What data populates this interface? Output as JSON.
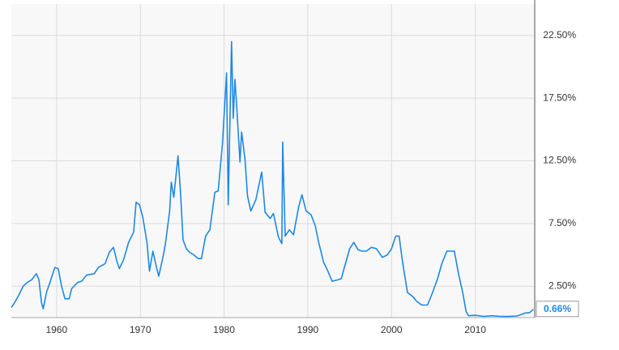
{
  "chart_data": {
    "type": "line",
    "series": [
      {
        "color": "#1e88e5",
        "x": [
          1954.6,
          1955,
          1955.5,
          1956,
          1956.5,
          1957,
          1957.6,
          1957.9,
          1958.2,
          1958.4,
          1958.8,
          1959.3,
          1959.8,
          1960.2,
          1960.6,
          1961,
          1961.5,
          1961.8,
          1962.5,
          1963,
          1963.6,
          1964.5,
          1965,
          1965.8,
          1966.3,
          1966.8,
          1967.2,
          1967.5,
          1968,
          1968.6,
          1969.2,
          1969.5,
          1969.9,
          1970.3,
          1970.8,
          1971.1,
          1971.5,
          1971.9,
          1972.2,
          1972.7,
          1973,
          1973.5,
          1973.7,
          1974,
          1974.5,
          1974.8,
          1975.1,
          1975.5,
          1975.9,
          1976.4,
          1976.9,
          1977.3,
          1977.8,
          1978.3,
          1978.9,
          1979.3,
          1979.8,
          1980.3,
          1980.5,
          1980.9,
          1981.1,
          1981.3,
          1981.5,
          1981.9,
          1982.1,
          1982.5,
          1982.8,
          1983.2,
          1983.8,
          1984.5,
          1984.9,
          1985.5,
          1985.9,
          1986.5,
          1986.9,
          1987.0,
          1987.3,
          1987.8,
          1988.3,
          1988.9,
          1989.3,
          1989.8,
          1990.4,
          1990.9,
          1991.3,
          1991.9,
          1992.4,
          1992.9,
          1993.5,
          1994,
          1994.5,
          1995,
          1995.5,
          1996,
          1996.5,
          1997,
          1997.6,
          1998.2,
          1998.9,
          1999.5,
          2000,
          2000.5,
          2000.9,
          2001.3,
          2001.9,
          2002.5,
          2003,
          2003.6,
          2004.3,
          2004.9,
          2005.5,
          2006,
          2006.6,
          2007.5,
          2008,
          2008.5,
          2008.9,
          2009.2,
          2010,
          2011,
          2012,
          2013,
          2014,
          2015,
          2015.95,
          2016.5,
          2016.95
        ],
        "values": [
          0.8,
          1.2,
          1.8,
          2.5,
          2.8,
          3.0,
          3.5,
          3.0,
          1.2,
          0.7,
          2.0,
          3.0,
          4.0,
          3.9,
          2.5,
          1.5,
          1.5,
          2.3,
          2.8,
          2.9,
          3.4,
          3.5,
          4.0,
          4.3,
          5.2,
          5.6,
          4.5,
          3.9,
          4.6,
          6.0,
          6.8,
          9.2,
          9.0,
          8.0,
          6.0,
          3.7,
          5.3,
          4.1,
          3.3,
          4.8,
          5.9,
          8.5,
          10.8,
          9.6,
          12.9,
          10.0,
          6.2,
          5.5,
          5.2,
          5.0,
          4.7,
          4.7,
          6.5,
          7.0,
          10.0,
          10.1,
          13.8,
          19.5,
          9.0,
          22.0,
          15.9,
          19.0,
          17.0,
          12.4,
          14.8,
          12.6,
          9.7,
          8.5,
          9.4,
          11.6,
          8.4,
          7.9,
          8.3,
          6.4,
          5.9,
          14.0,
          6.5,
          7.0,
          6.6,
          8.8,
          9.8,
          8.5,
          8.2,
          7.3,
          6.0,
          4.4,
          3.7,
          2.9,
          3.0,
          3.1,
          4.3,
          5.5,
          6.0,
          5.4,
          5.3,
          5.3,
          5.6,
          5.5,
          4.8,
          5.0,
          5.5,
          6.5,
          6.5,
          4.5,
          2.0,
          1.7,
          1.3,
          1.0,
          1.0,
          2.0,
          3.1,
          4.3,
          5.3,
          5.3,
          3.5,
          2.0,
          0.5,
          0.15,
          0.18,
          0.1,
          0.15,
          0.1,
          0.09,
          0.13,
          0.36,
          0.4,
          0.66
        ]
      }
    ],
    "last_value_label": "0.66%",
    "xlim": [
      1954.6,
      2017.1
    ],
    "xticks": [
      1960,
      1970,
      1980,
      1990,
      2000,
      2010
    ],
    "ylim": [
      0,
      25
    ],
    "yticks": [
      {
        "value": 2.5,
        "label": "2.50%"
      },
      {
        "value": 7.5,
        "label": "7.50%"
      },
      {
        "value": 12.5,
        "label": "12.50%"
      },
      {
        "value": 17.5,
        "label": "17.50%"
      },
      {
        "value": 22.5,
        "label": "22.50%"
      }
    ],
    "grid": true
  }
}
